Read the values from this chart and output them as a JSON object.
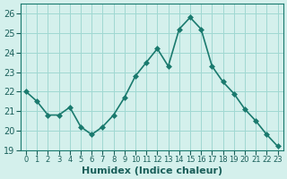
{
  "x": [
    0,
    1,
    2,
    3,
    4,
    5,
    6,
    7,
    8,
    9,
    10,
    11,
    12,
    13,
    14,
    15,
    16,
    17,
    18,
    19,
    20,
    21,
    22,
    23
  ],
  "y": [
    22.0,
    21.5,
    20.8,
    20.8,
    21.2,
    20.2,
    19.8,
    20.2,
    20.8,
    21.7,
    22.8,
    23.5,
    24.2,
    23.3,
    25.2,
    25.8,
    25.2,
    23.3,
    22.5,
    21.9,
    21.1,
    20.5,
    19.8,
    19.2
  ],
  "xlabel": "Humidex (Indice chaleur)",
  "line_color": "#1a7a6e",
  "marker_color": "#1a7a6e",
  "bg_color": "#d4f0ec",
  "grid_color": "#a0d8d2",
  "text_color": "#1a5f5a",
  "ylim": [
    19,
    26.5
  ],
  "xlim": [
    -0.5,
    23.5
  ],
  "yticks": [
    19,
    20,
    21,
    22,
    23,
    24,
    25,
    26
  ],
  "xtick_labels": [
    "0",
    "1",
    "2",
    "3",
    "4",
    "5",
    "6",
    "7",
    "8",
    "9",
    "10",
    "11",
    "12",
    "13",
    "14",
    "15",
    "16",
    "17",
    "18",
    "19",
    "20",
    "21",
    "22",
    "23"
  ],
  "xlabel_fontsize": 8,
  "tick_fontsize": 7,
  "line_width": 1.2,
  "marker_size": 3
}
